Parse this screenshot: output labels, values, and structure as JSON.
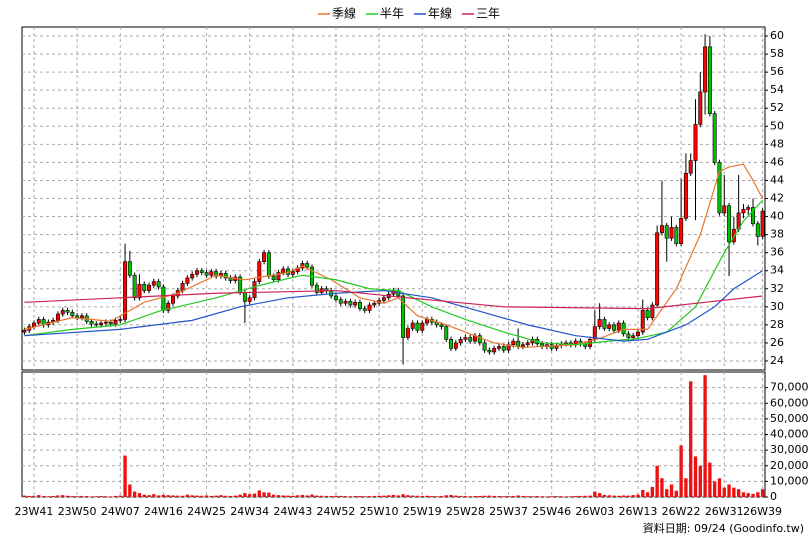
{
  "chart_data": {
    "type": "candlestick",
    "grid": true,
    "up_color": "#ff0000",
    "down_color": "#00c000",
    "categories": [
      null,
      null,
      "23W41",
      null,
      null,
      null,
      null,
      null,
      null,
      null,
      null,
      "23W50",
      null,
      null,
      null,
      null,
      null,
      null,
      null,
      null,
      "24W07",
      null,
      null,
      null,
      null,
      null,
      null,
      null,
      null,
      "24W16",
      null,
      null,
      null,
      null,
      null,
      null,
      null,
      null,
      "24W25",
      null,
      null,
      null,
      null,
      null,
      null,
      null,
      null,
      "24W34",
      null,
      null,
      null,
      null,
      null,
      null,
      null,
      null,
      "24W43",
      null,
      null,
      null,
      null,
      null,
      null,
      null,
      null,
      "24W52",
      null,
      null,
      null,
      null,
      null,
      null,
      null,
      null,
      "25W10",
      null,
      null,
      null,
      null,
      null,
      null,
      null,
      null,
      "25W19",
      null,
      null,
      null,
      null,
      null,
      null,
      null,
      null,
      "25W28",
      null,
      null,
      null,
      null,
      null,
      null,
      null,
      null,
      "25W37",
      null,
      null,
      null,
      null,
      null,
      null,
      null,
      null,
      "25W46",
      null,
      null,
      null,
      null,
      null,
      null,
      null,
      null,
      "26W03",
      null,
      null,
      null,
      null,
      null,
      null,
      null,
      null,
      "26W13",
      null,
      null,
      null,
      null,
      null,
      null,
      null,
      null,
      "26W22",
      null,
      null,
      null,
      null,
      null,
      null,
      null,
      null,
      "26W31",
      null,
      null,
      null,
      null,
      null,
      null,
      null,
      "26W39"
    ],
    "open": [
      27.2,
      27.4,
      27.8,
      28.2,
      28.6,
      28.0,
      28.3,
      28.5,
      29.2,
      29.6,
      29.4,
      29.0,
      28.8,
      29.0,
      28.4,
      28.1,
      28.0,
      28.2,
      28.3,
      28.1,
      28.5,
      28.6,
      35.0,
      33.5,
      31.0,
      32.5,
      31.8,
      32.4,
      32.8,
      32.2,
      29.6,
      30.4,
      31.2,
      31.8,
      32.6,
      33.2,
      33.6,
      34.0,
      33.8,
      33.5,
      33.9,
      33.4,
      33.7,
      33.2,
      32.9,
      33.3,
      31.6,
      30.6,
      31.0,
      32.8,
      35.0,
      36.0,
      33.4,
      33.0,
      33.8,
      34.2,
      33.6,
      33.9,
      34.3,
      34.8,
      34.4,
      32.4,
      31.6,
      32.0,
      31.8,
      31.2,
      30.8,
      30.4,
      30.6,
      30.2,
      30.5,
      29.8,
      29.6,
      30.2,
      30.4,
      30.7,
      31.0,
      31.4,
      31.8,
      31.2,
      26.6,
      27.6,
      28.2,
      27.4,
      28.2,
      28.6,
      28.3,
      28.0,
      27.8,
      26.4,
      25.4,
      26.0,
      26.4,
      26.6,
      26.2,
      26.8,
      26.0,
      25.2,
      25.0,
      25.4,
      25.6,
      25.2,
      25.8,
      26.2,
      25.6,
      25.8,
      26.0,
      26.4,
      25.9,
      25.6,
      25.8,
      25.4,
      25.7,
      25.9,
      26.0,
      25.8,
      26.2,
      25.9,
      25.6,
      26.4,
      27.8,
      28.6,
      27.6,
      28.0,
      27.4,
      28.2,
      27.0,
      26.6,
      26.8,
      27.2,
      29.6,
      28.8,
      30.2,
      38.2,
      39.0,
      37.6,
      38.8,
      37.0,
      39.8,
      44.8,
      46.2,
      50.2,
      53.8,
      58.8,
      51.4,
      46.0,
      40.4,
      41.2,
      37.2,
      38.6,
      40.4,
      40.8,
      41.0,
      39.2,
      37.8
    ],
    "high": [
      27.7,
      28.1,
      28.5,
      28.9,
      28.9,
      28.6,
      28.8,
      29.5,
      29.9,
      29.9,
      29.7,
      29.3,
      29.3,
      29.3,
      28.7,
      28.4,
      28.5,
      28.6,
      28.6,
      28.8,
      28.9,
      37.0,
      36.2,
      33.8,
      33.6,
      32.8,
      32.7,
      33.1,
      33.1,
      32.5,
      30.7,
      31.5,
      32.1,
      32.9,
      33.5,
      33.9,
      34.3,
      34.3,
      34.1,
      34.2,
      34.2,
      34.0,
      34.0,
      33.5,
      33.6,
      33.6,
      31.9,
      31.3,
      33.1,
      35.3,
      36.3,
      36.3,
      33.7,
      34.1,
      34.5,
      34.5,
      34.2,
      34.6,
      35.1,
      35.1,
      34.7,
      32.7,
      32.3,
      32.3,
      32.1,
      31.5,
      31.1,
      30.9,
      30.9,
      30.8,
      30.8,
      30.1,
      30.5,
      30.7,
      31.0,
      31.3,
      31.7,
      32.1,
      32.1,
      31.5,
      27.9,
      28.5,
      28.5,
      28.5,
      28.9,
      28.9,
      28.6,
      28.3,
      28.1,
      26.7,
      26.3,
      26.7,
      26.9,
      26.9,
      27.1,
      27.1,
      26.3,
      25.5,
      25.7,
      25.9,
      25.9,
      26.1,
      26.5,
      27.6,
      26.1,
      26.3,
      26.7,
      26.7,
      26.2,
      26.1,
      26.1,
      26.0,
      26.2,
      26.3,
      26.3,
      26.5,
      26.5,
      26.2,
      26.7,
      29.6,
      30.4,
      28.9,
      28.3,
      28.3,
      28.5,
      28.5,
      27.3,
      27.1,
      27.5,
      30.8,
      29.9,
      30.5,
      39.0,
      44.0,
      39.3,
      40.0,
      39.1,
      44.2,
      47.0,
      47.0,
      53.0,
      56.0,
      60.2,
      60.0,
      51.7,
      46.3,
      44.6,
      41.5,
      40.0,
      44.6,
      41.4,
      41.3,
      42.0,
      39.5,
      40.9
    ],
    "low": [
      26.9,
      27.1,
      27.5,
      27.9,
      27.7,
      27.7,
      28.0,
      28.2,
      28.9,
      29.1,
      28.7,
      28.5,
      28.5,
      28.1,
      27.8,
      27.7,
      27.7,
      27.9,
      27.8,
      27.8,
      28.2,
      28.3,
      33.2,
      30.7,
      30.7,
      31.5,
      31.5,
      32.1,
      31.9,
      29.3,
      29.3,
      30.1,
      30.9,
      31.5,
      32.3,
      32.9,
      33.3,
      33.5,
      33.2,
      33.2,
      33.1,
      33.1,
      32.9,
      32.6,
      32.6,
      31.3,
      28.2,
      30.3,
      30.7,
      32.5,
      34.7,
      33.1,
      32.7,
      32.7,
      33.5,
      33.3,
      33.3,
      33.6,
      34.0,
      34.1,
      32.1,
      31.3,
      31.3,
      31.5,
      30.9,
      30.5,
      30.1,
      30.1,
      29.9,
      29.9,
      29.5,
      29.3,
      29.3,
      29.9,
      30.1,
      30.4,
      30.7,
      31.1,
      30.9,
      23.6,
      26.3,
      27.3,
      27.1,
      27.1,
      27.9,
      28.0,
      27.7,
      27.5,
      26.1,
      25.1,
      25.1,
      25.7,
      26.1,
      25.9,
      25.9,
      25.7,
      24.9,
      24.7,
      24.7,
      25.1,
      24.9,
      24.9,
      25.5,
      25.3,
      25.3,
      25.5,
      25.7,
      25.6,
      25.3,
      25.3,
      25.1,
      25.1,
      25.4,
      25.6,
      25.5,
      25.5,
      25.6,
      25.3,
      25.3,
      26.1,
      27.5,
      27.3,
      27.3,
      27.1,
      27.1,
      26.7,
      26.3,
      26.3,
      26.5,
      26.9,
      28.5,
      28.5,
      29.9,
      37.9,
      35.0,
      37.3,
      36.7,
      36.7,
      39.5,
      44.5,
      39.6,
      49.9,
      51.3,
      51.1,
      45.7,
      40.1,
      40.1,
      33.4,
      36.9,
      38.3,
      39.8,
      40.2,
      38.9,
      36.8,
      37.5
    ],
    "close": [
      27.4,
      27.8,
      28.2,
      28.6,
      28.0,
      28.3,
      28.5,
      29.2,
      29.6,
      29.4,
      29.0,
      28.8,
      29.0,
      28.4,
      28.1,
      28.0,
      28.2,
      28.3,
      28.1,
      28.5,
      28.6,
      35.0,
      33.5,
      31.0,
      32.5,
      31.8,
      32.4,
      32.8,
      32.2,
      29.6,
      30.4,
      31.2,
      31.8,
      32.6,
      33.2,
      33.6,
      34.0,
      33.8,
      33.5,
      33.9,
      33.4,
      33.7,
      33.2,
      32.9,
      33.3,
      31.6,
      30.6,
      31.0,
      32.8,
      35.0,
      36.0,
      33.4,
      33.0,
      33.8,
      34.2,
      33.6,
      33.9,
      34.3,
      34.8,
      34.4,
      32.4,
      31.6,
      32.0,
      31.8,
      31.2,
      30.8,
      30.4,
      30.6,
      30.2,
      30.5,
      29.8,
      29.6,
      30.2,
      30.4,
      30.7,
      31.0,
      31.4,
      31.8,
      31.2,
      26.6,
      27.6,
      28.2,
      27.4,
      28.2,
      28.6,
      28.3,
      28.0,
      27.8,
      26.4,
      25.4,
      26.0,
      26.4,
      26.6,
      26.2,
      26.8,
      26.0,
      25.2,
      25.0,
      25.4,
      25.6,
      25.2,
      25.8,
      26.2,
      25.6,
      25.8,
      26.0,
      26.4,
      25.9,
      25.6,
      25.8,
      25.4,
      25.7,
      25.9,
      26.0,
      25.8,
      26.2,
      25.9,
      25.6,
      26.4,
      27.8,
      28.6,
      27.6,
      28.0,
      27.4,
      28.2,
      27.0,
      26.6,
      26.8,
      27.2,
      29.6,
      28.8,
      30.2,
      38.2,
      39.0,
      37.6,
      38.8,
      37.0,
      39.8,
      44.8,
      46.2,
      50.2,
      53.8,
      58.8,
      51.4,
      46.0,
      40.4,
      41.2,
      37.2,
      38.6,
      40.4,
      40.8,
      41.0,
      39.2,
      37.8,
      40.6
    ],
    "ylim": [
      23,
      61
    ],
    "yticks": [
      24,
      26,
      28,
      30,
      32,
      34,
      36,
      38,
      40,
      42,
      44,
      46,
      48,
      50,
      52,
      54,
      56,
      58,
      60
    ],
    "lines": [
      {
        "name": "季線",
        "color": "#e8772e",
        "x": [
          0,
          10,
          18,
          25,
          32,
          40,
          46,
          55,
          58,
          64,
          70,
          75,
          78,
          82,
          88,
          93,
          98,
          104,
          115,
          120,
          125,
          130,
          136,
          141,
          145,
          147,
          150,
          152,
          154
        ],
        "values": [
          27.5,
          28.8,
          28.4,
          30.5,
          31.5,
          33.5,
          33.0,
          33.8,
          34.5,
          33.0,
          31.0,
          30.4,
          31.0,
          29.0,
          28.0,
          27.0,
          26.0,
          25.5,
          25.8,
          26.5,
          27.5,
          27.5,
          32.0,
          38.0,
          45.0,
          45.5,
          45.8,
          44.0,
          42.0
        ]
      },
      {
        "name": "半年",
        "color": "#22cc22",
        "x": [
          0,
          10,
          20,
          28,
          40,
          50,
          58,
          65,
          72,
          78,
          85,
          92,
          100,
          108,
          115,
          122,
          128,
          134,
          140,
          146,
          150,
          154
        ],
        "values": [
          26.8,
          27.5,
          28.0,
          29.5,
          31.0,
          32.5,
          33.5,
          33.0,
          32.0,
          31.8,
          30.0,
          28.6,
          27.2,
          26.0,
          25.8,
          26.2,
          26.5,
          27.2,
          30.0,
          36.0,
          39.5,
          41.8
        ]
      },
      {
        "name": "年線",
        "color": "#2255cc",
        "x": [
          0,
          20,
          35,
          45,
          55,
          65,
          75,
          85,
          95,
          105,
          115,
          125,
          130,
          138,
          144,
          148,
          154
        ],
        "values": [
          26.8,
          27.5,
          28.5,
          30.0,
          31.0,
          31.5,
          31.8,
          31.0,
          29.5,
          28.0,
          26.8,
          26.2,
          26.4,
          28.0,
          30.0,
          32.0,
          34.0
        ]
      },
      {
        "name": "三年",
        "color": "#cc2255",
        "x": [
          0,
          40,
          65,
          80,
          100,
          130,
          142,
          154
        ],
        "values": [
          30.5,
          31.5,
          31.8,
          31.0,
          30.0,
          29.8,
          30.5,
          31.2
        ]
      }
    ],
    "volume": {
      "color": "#ee1111",
      "values": [
        900,
        700,
        800,
        1200,
        600,
        500,
        700,
        1000,
        1200,
        800,
        600,
        500,
        700,
        600,
        400,
        500,
        600,
        500,
        400,
        700,
        900,
        26500,
        8000,
        3500,
        2500,
        1500,
        1200,
        1800,
        1000,
        1400,
        1200,
        1000,
        900,
        800,
        1500,
        1100,
        900,
        800,
        1000,
        700,
        900,
        1200,
        800,
        700,
        900,
        1500,
        2500,
        1800,
        2200,
        4200,
        3000,
        2800,
        1500,
        1200,
        1000,
        900,
        800,
        1100,
        1300,
        1000,
        1600,
        900,
        800,
        700,
        600,
        800,
        700,
        600,
        500,
        600,
        700,
        500,
        600,
        700,
        800,
        900,
        1100,
        1300,
        1000,
        1800,
        1200,
        900,
        800,
        700,
        800,
        600,
        500,
        700,
        1100,
        1300,
        900,
        700,
        600,
        500,
        600,
        700,
        800,
        900,
        700,
        600,
        500,
        600,
        700,
        1000,
        600,
        500,
        500,
        600,
        500,
        400,
        500,
        600,
        500,
        400,
        500,
        600,
        700,
        800,
        900,
        3500,
        2500,
        1400,
        1100,
        900,
        800,
        1000,
        900,
        1200,
        1500,
        4500,
        3000,
        6500,
        20000,
        12000,
        5000,
        8000,
        4000,
        33000,
        12000,
        74000,
        26000,
        20000,
        78000,
        22000,
        10000,
        12000,
        6000,
        8000,
        6000,
        5000,
        3000,
        2500,
        2000,
        3000,
        5000
      ],
      "ylim": [
        0,
        80000
      ],
      "yticks": [
        0,
        {
          "value": 10000,
          "label": "10,000"
        },
        {
          "value": 20000,
          "label": "20,000"
        },
        {
          "value": 30000,
          "label": "30,000"
        },
        {
          "value": 40000,
          "label": "40,000"
        },
        {
          "value": 50000,
          "label": "50,000"
        },
        {
          "value": 60000,
          "label": "60,000"
        },
        {
          "value": 70000,
          "label": "70,000"
        }
      ]
    },
    "footer": "資料日期: 09/24 (Goodinfo.tw)"
  }
}
